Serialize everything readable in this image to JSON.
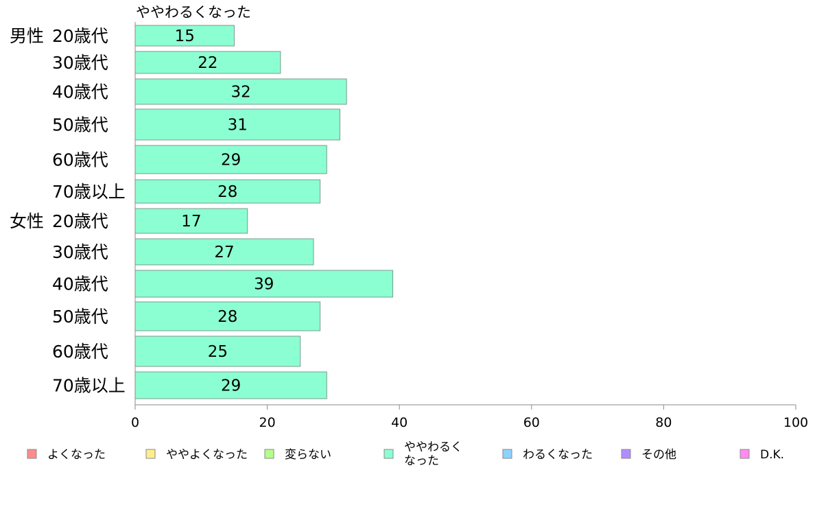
{
  "chart_data": {
    "type": "bar",
    "orientation": "horizontal",
    "title": "ややわるくなった",
    "groups": [
      {
        "label": "男性",
        "start_index": 0
      },
      {
        "label": "女性",
        "start_index": 6
      }
    ],
    "categories": [
      "20歳代",
      "30歳代",
      "40歳代",
      "50歳代",
      "60歳代",
      "70歳以上",
      "20歳代",
      "30歳代",
      "40歳代",
      "50歳代",
      "60歳代",
      "70歳以上"
    ],
    "values": [
      15,
      22,
      32,
      31,
      29,
      28,
      17,
      27,
      39,
      28,
      25,
      29
    ],
    "value_labels": [
      "15",
      "22",
      "32",
      "31",
      "29",
      "28",
      "17",
      "27",
      "39",
      "28",
      "25",
      "29"
    ],
    "xlim": [
      0,
      100
    ],
    "xticks": [
      0,
      20,
      40,
      60,
      80,
      100
    ],
    "grid": false,
    "bar_color": "#8cffd2",
    "legend": {
      "placement": "bottom",
      "items": [
        {
          "label": "よくなった",
          "color": "#ff8c8c"
        },
        {
          "label": "ややよくなった",
          "color": "#ffee8c"
        },
        {
          "label": "変らない",
          "color": "#b2ff8c"
        },
        {
          "label": "ややわるく\nなった",
          "color": "#8cffd2"
        },
        {
          "label": "わるくなった",
          "color": "#8cd2ff"
        },
        {
          "label": "その他",
          "color": "#b28cff"
        },
        {
          "label": "D.K.",
          "color": "#ff8cee"
        }
      ]
    }
  }
}
